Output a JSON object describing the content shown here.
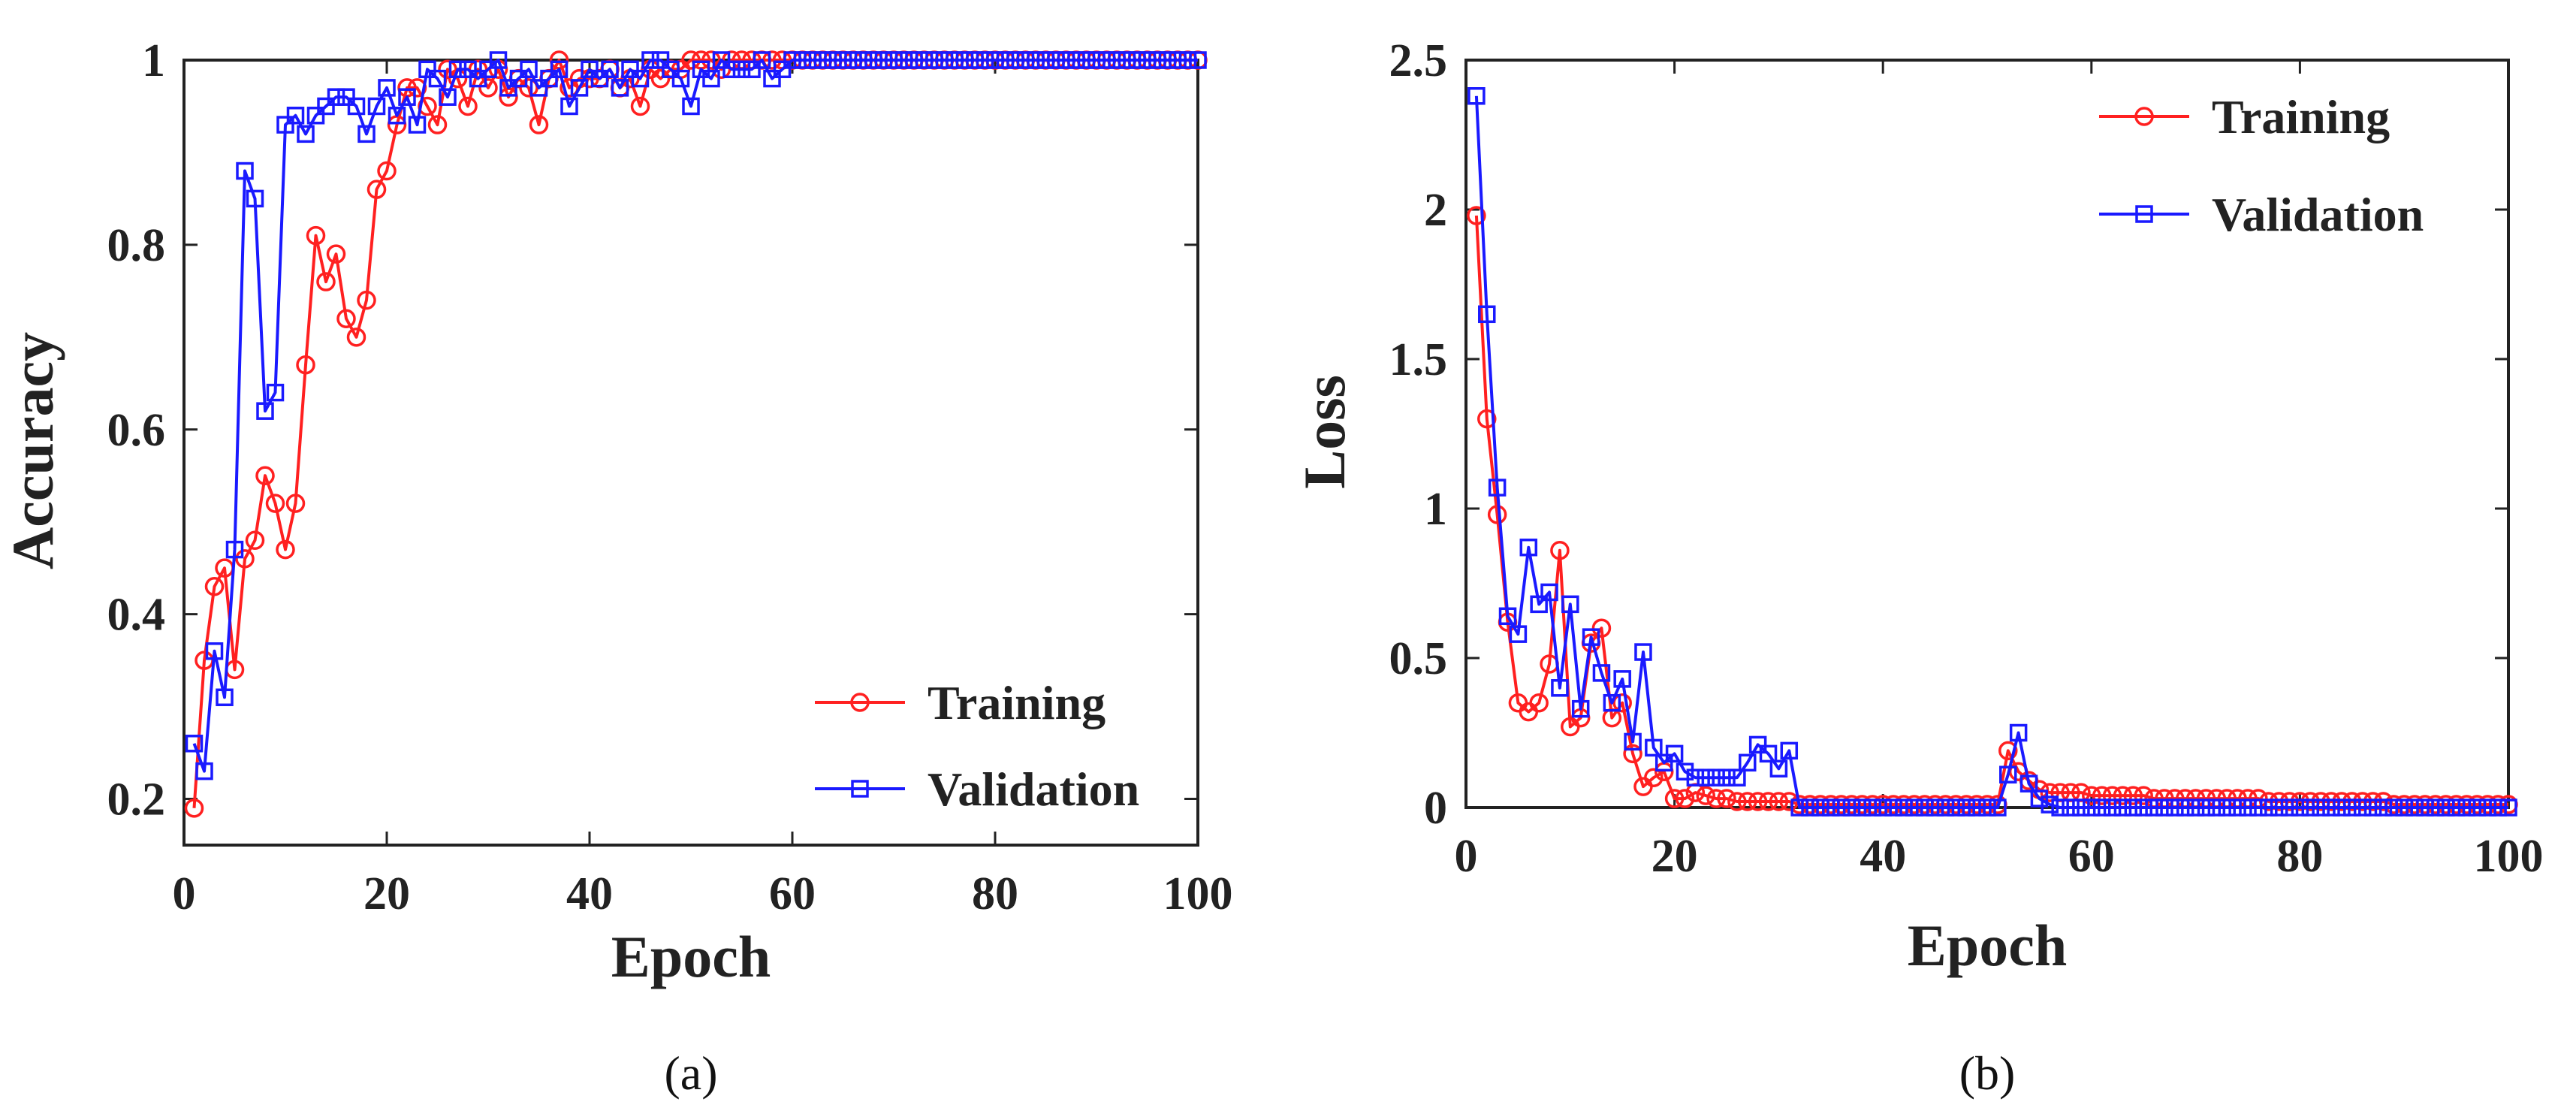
{
  "colors": {
    "training": "#ff2020",
    "validation": "#1a1aff",
    "axis": "#222222"
  },
  "chart_data": [
    {
      "type": "line",
      "caption": "(a)",
      "xlabel": "Epoch",
      "ylabel": "Accuracy",
      "xlim": [
        0,
        100
      ],
      "ylim": [
        0.15,
        1.0
      ],
      "xticks": [
        0,
        20,
        40,
        60,
        80,
        100
      ],
      "yticks": [
        0.2,
        0.4,
        0.6,
        0.8,
        1
      ],
      "ytick_labels": [
        "0.2",
        "0.4",
        "0.6",
        "0.8",
        "1"
      ],
      "legend_position": "lower-right",
      "grid": false,
      "series": [
        {
          "name": "Training",
          "color": "#ff2020",
          "marker": "circle",
          "x": [
            1,
            2,
            3,
            4,
            5,
            6,
            7,
            8,
            9,
            10,
            11,
            12,
            13,
            14,
            15,
            16,
            17,
            18,
            19,
            20,
            21,
            22,
            23,
            24,
            25,
            26,
            27,
            28,
            29,
            30,
            31,
            32,
            33,
            34,
            35,
            36,
            37,
            38,
            39,
            40,
            41,
            42,
            43,
            44,
            45,
            46,
            47,
            48,
            49,
            50,
            51,
            52,
            53,
            54,
            55,
            56,
            57,
            58,
            59,
            60,
            61,
            62,
            63,
            64,
            65,
            66,
            67,
            68,
            69,
            70,
            71,
            72,
            73,
            74,
            75,
            76,
            77,
            78,
            79,
            80,
            81,
            82,
            83,
            84,
            85,
            86,
            87,
            88,
            89,
            90,
            91,
            92,
            93,
            94,
            95,
            96,
            97,
            98,
            99,
            100
          ],
          "y": [
            0.19,
            0.35,
            0.43,
            0.45,
            0.34,
            0.46,
            0.48,
            0.55,
            0.52,
            0.47,
            0.52,
            0.67,
            0.81,
            0.76,
            0.79,
            0.72,
            0.7,
            0.74,
            0.86,
            0.88,
            0.93,
            0.97,
            0.97,
            0.95,
            0.93,
            0.99,
            0.98,
            0.95,
            0.99,
            0.97,
            0.99,
            0.96,
            0.98,
            0.97,
            0.93,
            0.98,
            1.0,
            0.97,
            0.98,
            0.98,
            0.98,
            0.99,
            0.97,
            0.98,
            0.95,
            0.99,
            0.98,
            0.99,
            0.99,
            1.0,
            1.0,
            1.0,
            0.99,
            1.0,
            1.0,
            1.0,
            1.0,
            1.0,
            1.0,
            1.0,
            1.0,
            1.0,
            1.0,
            1.0,
            1.0,
            1.0,
            1.0,
            1.0,
            1.0,
            1.0,
            1.0,
            1.0,
            1.0,
            1.0,
            1.0,
            1.0,
            1.0,
            1.0,
            1.0,
            1.0,
            1.0,
            1.0,
            1.0,
            1.0,
            1.0,
            1.0,
            1.0,
            1.0,
            1.0,
            1.0,
            1.0,
            1.0,
            1.0,
            1.0,
            1.0,
            1.0,
            1.0,
            1.0,
            1.0,
            1.0
          ]
        },
        {
          "name": "Validation",
          "color": "#1a1aff",
          "marker": "square",
          "x": [
            1,
            2,
            3,
            4,
            5,
            6,
            7,
            8,
            9,
            10,
            11,
            12,
            13,
            14,
            15,
            16,
            17,
            18,
            19,
            20,
            21,
            22,
            23,
            24,
            25,
            26,
            27,
            28,
            29,
            30,
            31,
            32,
            33,
            34,
            35,
            36,
            37,
            38,
            39,
            40,
            41,
            42,
            43,
            44,
            45,
            46,
            47,
            48,
            49,
            50,
            51,
            52,
            53,
            54,
            55,
            56,
            57,
            58,
            59,
            60,
            61,
            62,
            63,
            64,
            65,
            66,
            67,
            68,
            69,
            70,
            71,
            72,
            73,
            74,
            75,
            76,
            77,
            78,
            79,
            80,
            81,
            82,
            83,
            84,
            85,
            86,
            87,
            88,
            89,
            90,
            91,
            92,
            93,
            94,
            95,
            96,
            97,
            98,
            99,
            100
          ],
          "y": [
            0.26,
            0.23,
            0.36,
            0.31,
            0.47,
            0.88,
            0.85,
            0.62,
            0.64,
            0.93,
            0.94,
            0.92,
            0.94,
            0.95,
            0.96,
            0.96,
            0.95,
            0.92,
            0.95,
            0.97,
            0.94,
            0.96,
            0.93,
            0.99,
            0.98,
            0.96,
            0.99,
            0.99,
            0.98,
            0.99,
            1.0,
            0.97,
            0.98,
            0.99,
            0.97,
            0.98,
            0.99,
            0.95,
            0.97,
            0.99,
            0.98,
            0.99,
            0.97,
            0.99,
            0.98,
            1.0,
            1.0,
            0.99,
            0.98,
            0.95,
            0.99,
            0.98,
            1.0,
            0.99,
            0.99,
            0.99,
            1.0,
            0.98,
            0.99,
            1.0,
            1.0,
            1.0,
            1.0,
            1.0,
            1.0,
            1.0,
            1.0,
            1.0,
            1.0,
            1.0,
            1.0,
            1.0,
            1.0,
            1.0,
            1.0,
            1.0,
            1.0,
            1.0,
            1.0,
            1.0,
            1.0,
            1.0,
            1.0,
            1.0,
            1.0,
            1.0,
            1.0,
            1.0,
            1.0,
            1.0,
            1.0,
            1.0,
            1.0,
            1.0,
            1.0,
            1.0,
            1.0,
            1.0,
            1.0,
            1.0
          ]
        }
      ]
    },
    {
      "type": "line",
      "caption": "(b)",
      "xlabel": "Epoch",
      "ylabel": "Loss",
      "xlim": [
        0,
        100
      ],
      "ylim": [
        0,
        2.5
      ],
      "xticks": [
        0,
        20,
        40,
        60,
        80,
        100
      ],
      "yticks": [
        0,
        0.5,
        1,
        1.5,
        2,
        2.5
      ],
      "ytick_labels": [
        "0",
        "0.5",
        "1",
        "1.5",
        "2",
        "2.5"
      ],
      "legend_position": "top-right",
      "grid": false,
      "series": [
        {
          "name": "Training",
          "color": "#ff2020",
          "marker": "circle",
          "x": [
            1,
            2,
            3,
            4,
            5,
            6,
            7,
            8,
            9,
            10,
            11,
            12,
            13,
            14,
            15,
            16,
            17,
            18,
            19,
            20,
            21,
            22,
            23,
            24,
            25,
            26,
            27,
            28,
            29,
            30,
            31,
            32,
            33,
            34,
            35,
            36,
            37,
            38,
            39,
            40,
            41,
            42,
            43,
            44,
            45,
            46,
            47,
            48,
            49,
            50,
            51,
            52,
            53,
            54,
            55,
            56,
            57,
            58,
            59,
            60,
            61,
            62,
            63,
            64,
            65,
            66,
            67,
            68,
            69,
            70,
            71,
            72,
            73,
            74,
            75,
            76,
            77,
            78,
            79,
            80,
            81,
            82,
            83,
            84,
            85,
            86,
            87,
            88,
            89,
            90,
            91,
            92,
            93,
            94,
            95,
            96,
            97,
            98,
            99,
            100
          ],
          "y": [
            1.98,
            1.3,
            0.98,
            0.62,
            0.35,
            0.32,
            0.35,
            0.48,
            0.86,
            0.27,
            0.3,
            0.55,
            0.6,
            0.3,
            0.35,
            0.18,
            0.07,
            0.1,
            0.12,
            0.03,
            0.03,
            0.05,
            0.04,
            0.03,
            0.03,
            0.02,
            0.02,
            0.02,
            0.02,
            0.02,
            0.02,
            0.01,
            0.01,
            0.01,
            0.01,
            0.01,
            0.01,
            0.01,
            0.01,
            0.01,
            0.01,
            0.01,
            0.01,
            0.01,
            0.01,
            0.01,
            0.01,
            0.01,
            0.01,
            0.01,
            0.01,
            0.19,
            0.12,
            0.09,
            0.06,
            0.05,
            0.05,
            0.05,
            0.05,
            0.04,
            0.04,
            0.04,
            0.04,
            0.04,
            0.04,
            0.03,
            0.03,
            0.03,
            0.03,
            0.03,
            0.03,
            0.03,
            0.03,
            0.03,
            0.03,
            0.03,
            0.02,
            0.02,
            0.02,
            0.02,
            0.02,
            0.02,
            0.02,
            0.02,
            0.02,
            0.02,
            0.02,
            0.02,
            0.01,
            0.01,
            0.01,
            0.01,
            0.01,
            0.01,
            0.01,
            0.01,
            0.01,
            0.01,
            0.01,
            0.01
          ]
        },
        {
          "name": "Validation",
          "color": "#1a1aff",
          "marker": "square",
          "x": [
            1,
            2,
            3,
            4,
            5,
            6,
            7,
            8,
            9,
            10,
            11,
            12,
            13,
            14,
            15,
            16,
            17,
            18,
            19,
            20,
            21,
            22,
            23,
            24,
            25,
            26,
            27,
            28,
            29,
            30,
            31,
            32,
            33,
            34,
            35,
            36,
            37,
            38,
            39,
            40,
            41,
            42,
            43,
            44,
            45,
            46,
            47,
            48,
            49,
            50,
            51,
            52,
            53,
            54,
            55,
            56,
            57,
            58,
            59,
            60,
            61,
            62,
            63,
            64,
            65,
            66,
            67,
            68,
            69,
            70,
            71,
            72,
            73,
            74,
            75,
            76,
            77,
            78,
            79,
            80,
            81,
            82,
            83,
            84,
            85,
            86,
            87,
            88,
            89,
            90,
            91,
            92,
            93,
            94,
            95,
            96,
            97,
            98,
            99,
            100
          ],
          "y": [
            2.38,
            1.65,
            1.07,
            0.64,
            0.58,
            0.87,
            0.68,
            0.72,
            0.4,
            0.68,
            0.33,
            0.57,
            0.45,
            0.35,
            0.43,
            0.22,
            0.52,
            0.2,
            0.15,
            0.18,
            0.12,
            0.1,
            0.1,
            0.1,
            0.1,
            0.1,
            0.15,
            0.21,
            0.18,
            0.13,
            0.19,
            0.0,
            0.0,
            0.0,
            0.0,
            0.0,
            0.0,
            0.0,
            0.0,
            0.0,
            0.0,
            0.0,
            0.0,
            0.0,
            0.0,
            0.0,
            0.0,
            0.0,
            0.0,
            0.0,
            0.0,
            0.11,
            0.25,
            0.08,
            0.03,
            0.01,
            0.0,
            0.0,
            0.0,
            0.0,
            0.0,
            0.0,
            0.0,
            0.0,
            0.0,
            0.0,
            0.0,
            0.0,
            0.0,
            0.0,
            0.0,
            0.0,
            0.0,
            0.0,
            0.0,
            0.0,
            0.0,
            0.0,
            0.0,
            0.0,
            0.0,
            0.0,
            0.0,
            0.0,
            0.0,
            0.0,
            0.0,
            0.0,
            0.0,
            0.0,
            0.0,
            0.0,
            0.0,
            0.0,
            0.0,
            0.0,
            0.0,
            0.0,
            0.0,
            0.0
          ]
        }
      ]
    }
  ]
}
